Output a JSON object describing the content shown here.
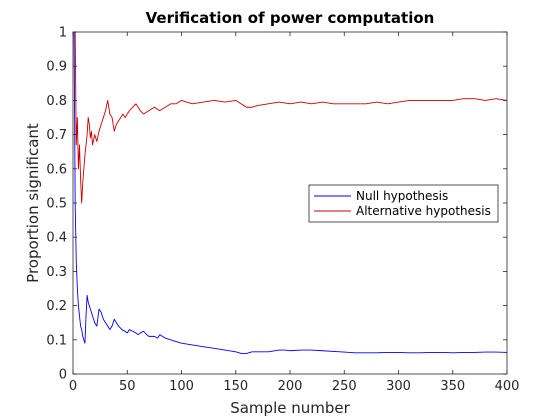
{
  "chart_data": {
    "type": "line",
    "title": "Verification of power computation",
    "xlabel": "Sample number",
    "ylabel": "Proportion significant",
    "xlim": [
      0,
      400
    ],
    "ylim": [
      0,
      1
    ],
    "xticks": [
      0,
      50,
      100,
      150,
      200,
      250,
      300,
      350,
      400
    ],
    "yticks": [
      0,
      0.1,
      0.2,
      0.3,
      0.4,
      0.5,
      0.6,
      0.7,
      0.8,
      0.9,
      1
    ],
    "grid": false,
    "legend_position": "right",
    "series": [
      {
        "name": "Null hypothesis",
        "color": "#0000ff",
        "x": [
          1,
          2,
          3,
          4,
          5,
          6,
          7,
          8,
          9,
          10,
          11,
          12,
          13,
          14,
          15,
          16,
          18,
          20,
          22,
          24,
          26,
          28,
          30,
          32,
          34,
          36,
          38,
          40,
          42,
          45,
          48,
          50,
          52,
          55,
          58,
          60,
          62,
          65,
          68,
          70,
          75,
          78,
          80,
          85,
          90,
          95,
          100,
          110,
          120,
          130,
          140,
          150,
          155,
          160,
          165,
          170,
          180,
          190,
          195,
          200,
          210,
          220,
          230,
          240,
          250,
          260,
          270,
          280,
          290,
          300,
          310,
          320,
          330,
          340,
          350,
          360,
          370,
          380,
          390,
          400
        ],
        "values": [
          1.0,
          0.5,
          0.33,
          0.25,
          0.2,
          0.17,
          0.14,
          0.13,
          0.11,
          0.1,
          0.09,
          0.17,
          0.23,
          0.21,
          0.2,
          0.19,
          0.17,
          0.15,
          0.14,
          0.19,
          0.18,
          0.16,
          0.15,
          0.14,
          0.13,
          0.14,
          0.16,
          0.15,
          0.14,
          0.13,
          0.125,
          0.12,
          0.13,
          0.125,
          0.12,
          0.115,
          0.12,
          0.125,
          0.115,
          0.11,
          0.11,
          0.105,
          0.115,
          0.105,
          0.1,
          0.095,
          0.09,
          0.085,
          0.08,
          0.075,
          0.07,
          0.065,
          0.06,
          0.06,
          0.065,
          0.065,
          0.065,
          0.07,
          0.07,
          0.068,
          0.07,
          0.07,
          0.068,
          0.066,
          0.064,
          0.062,
          0.062,
          0.062,
          0.063,
          0.063,
          0.062,
          0.062,
          0.063,
          0.063,
          0.062,
          0.063,
          0.063,
          0.064,
          0.064,
          0.063
        ]
      },
      {
        "name": "Alternative hypothesis",
        "color": "#cc0000",
        "x": [
          1,
          2,
          3,
          4,
          5,
          6,
          7,
          8,
          9,
          10,
          11,
          12,
          13,
          14,
          15,
          16,
          17,
          18,
          20,
          22,
          24,
          26,
          28,
          30,
          32,
          34,
          36,
          38,
          40,
          42,
          44,
          46,
          48,
          50,
          52,
          55,
          58,
          60,
          62,
          65,
          70,
          75,
          80,
          85,
          90,
          95,
          100,
          110,
          120,
          130,
          140,
          150,
          155,
          160,
          165,
          170,
          180,
          190,
          200,
          210,
          220,
          230,
          240,
          250,
          260,
          270,
          280,
          290,
          300,
          310,
          320,
          330,
          340,
          350,
          360,
          370,
          380,
          390,
          400
        ],
        "values": [
          1.0,
          1.0,
          0.67,
          0.75,
          0.6,
          0.67,
          0.57,
          0.5,
          0.56,
          0.6,
          0.64,
          0.67,
          0.7,
          0.75,
          0.73,
          0.69,
          0.71,
          0.67,
          0.7,
          0.68,
          0.71,
          0.73,
          0.75,
          0.77,
          0.8,
          0.76,
          0.75,
          0.71,
          0.73,
          0.74,
          0.75,
          0.76,
          0.75,
          0.76,
          0.77,
          0.78,
          0.79,
          0.78,
          0.77,
          0.76,
          0.77,
          0.78,
          0.77,
          0.78,
          0.79,
          0.79,
          0.8,
          0.79,
          0.795,
          0.8,
          0.795,
          0.8,
          0.79,
          0.78,
          0.78,
          0.785,
          0.79,
          0.795,
          0.79,
          0.795,
          0.79,
          0.795,
          0.79,
          0.79,
          0.79,
          0.79,
          0.795,
          0.79,
          0.795,
          0.8,
          0.8,
          0.8,
          0.8,
          0.8,
          0.805,
          0.805,
          0.8,
          0.805,
          0.8
        ]
      }
    ]
  }
}
